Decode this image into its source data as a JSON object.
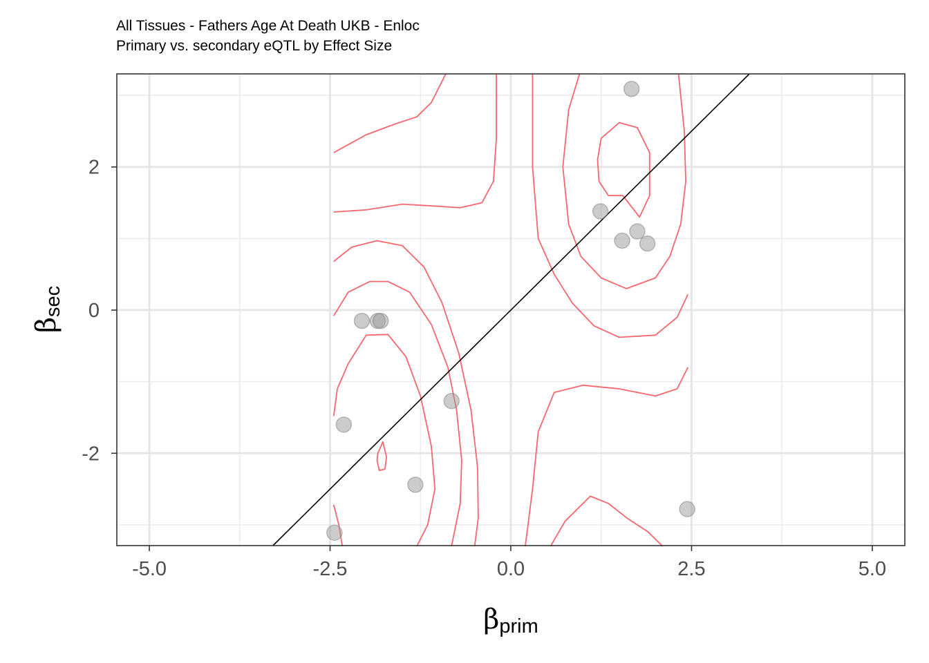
{
  "chart_data": {
    "type": "scatter",
    "title": "All Tissues - Fathers Age At Death UKB - Enloc",
    "subtitle": "Primary vs. secondary eQTL by Effect Size",
    "xlabel": {
      "symbol": "β",
      "subscript": "prim"
    },
    "ylabel": {
      "symbol": "β",
      "subscript": "sec"
    },
    "xlim": [
      -5.45,
      5.45
    ],
    "ylim": [
      -3.29,
      3.3
    ],
    "x_ticks": [
      -5.0,
      -2.5,
      0.0,
      2.5,
      5.0
    ],
    "x_tick_labels": [
      "-5.0",
      "-2.5",
      "0.0",
      "2.5",
      "5.0"
    ],
    "y_ticks": [
      -2,
      0,
      2
    ],
    "y_tick_labels": [
      "-2",
      "0",
      "2"
    ],
    "x_minor_ticks": [
      -3.75,
      -1.25,
      1.25,
      3.75
    ],
    "y_minor_ticks": [
      -3,
      -1,
      1,
      3
    ],
    "grid": true,
    "points": [
      {
        "x": 1.67,
        "y": 3.09
      },
      {
        "x": 1.24,
        "y": 1.38
      },
      {
        "x": 1.75,
        "y": 1.1
      },
      {
        "x": 1.54,
        "y": 0.97
      },
      {
        "x": 1.89,
        "y": 0.93
      },
      {
        "x": -2.06,
        "y": -0.15
      },
      {
        "x": -1.84,
        "y": -0.15
      },
      {
        "x": -1.8,
        "y": -0.15
      },
      {
        "x": -0.82,
        "y": -1.27
      },
      {
        "x": -2.31,
        "y": -1.6
      },
      {
        "x": -1.32,
        "y": -2.44
      },
      {
        "x": 2.44,
        "y": -2.78
      },
      {
        "x": -2.44,
        "y": -3.11
      }
    ],
    "reference_line": {
      "slope": 1,
      "intercept": 0,
      "color": "#000000"
    },
    "point_color": "#999999",
    "contour_color": "#f8666d",
    "contours": [
      [
        [
          1.25,
          2.4
        ],
        [
          1.5,
          2.62
        ],
        [
          1.75,
          2.55
        ],
        [
          1.92,
          2.2
        ],
        [
          1.92,
          1.6
        ],
        [
          1.78,
          1.3
        ],
        [
          1.55,
          1.6
        ],
        [
          1.35,
          1.6
        ],
        [
          1.22,
          1.8
        ],
        [
          1.2,
          2.1
        ],
        [
          1.25,
          2.4
        ]
      ],
      [
        [
          0.72,
          2.0
        ],
        [
          0.8,
          2.8
        ],
        [
          0.95,
          3.3
        ]
      ],
      [
        [
          2.32,
          3.3
        ],
        [
          2.4,
          2.5
        ],
        [
          2.42,
          1.8
        ],
        [
          2.35,
          1.2
        ],
        [
          2.2,
          0.75
        ],
        [
          2.0,
          0.45
        ],
        [
          1.6,
          0.3
        ],
        [
          1.25,
          0.45
        ],
        [
          0.97,
          0.75
        ],
        [
          0.8,
          1.2
        ],
        [
          0.72,
          2.0
        ]
      ],
      [
        [
          0.3,
          3.3
        ],
        [
          0.3,
          2.0
        ],
        [
          0.38,
          1.0
        ],
        [
          0.6,
          0.5
        ],
        [
          0.85,
          0.1
        ],
        [
          1.15,
          -0.22
        ],
        [
          1.5,
          -0.38
        ],
        [
          2.0,
          -0.35
        ],
        [
          2.3,
          -0.1
        ],
        [
          2.45,
          0.22
        ]
      ],
      [
        [
          -0.2,
          3.3
        ],
        [
          -0.2,
          2.4
        ],
        [
          -0.24,
          1.8
        ],
        [
          -0.4,
          1.5
        ],
        [
          -0.7,
          1.43
        ],
        [
          -1.0,
          1.45
        ],
        [
          -1.5,
          1.48
        ],
        [
          -2.0,
          1.4
        ],
        [
          -2.45,
          1.37
        ]
      ],
      [
        [
          -0.9,
          3.3
        ],
        [
          -1.1,
          2.9
        ],
        [
          -1.3,
          2.7
        ],
        [
          -1.6,
          2.6
        ],
        [
          -2.0,
          2.45
        ],
        [
          -2.45,
          2.2
        ]
      ],
      [
        [
          -2.45,
          0.68
        ],
        [
          -2.2,
          0.88
        ],
        [
          -1.85,
          0.97
        ],
        [
          -1.5,
          0.9
        ],
        [
          -1.2,
          0.6
        ],
        [
          -0.95,
          0.1
        ],
        [
          -0.72,
          -0.6
        ],
        [
          -0.55,
          -1.4
        ],
        [
          -0.46,
          -2.2
        ],
        [
          -0.45,
          -2.9
        ],
        [
          -0.5,
          -3.3
        ]
      ],
      [
        [
          -2.45,
          -0.08
        ],
        [
          -2.25,
          0.25
        ],
        [
          -1.95,
          0.4
        ],
        [
          -1.7,
          0.4
        ],
        [
          -1.4,
          0.25
        ],
        [
          -1.1,
          -0.2
        ],
        [
          -0.87,
          -0.8
        ],
        [
          -0.75,
          -1.4
        ],
        [
          -0.68,
          -2.1
        ],
        [
          -0.7,
          -2.7
        ],
        [
          -0.82,
          -3.3
        ]
      ],
      [
        [
          -2.45,
          -1.48
        ],
        [
          -2.4,
          -1.1
        ],
        [
          -2.25,
          -0.75
        ],
        [
          -2.0,
          -0.35
        ],
        [
          -1.7,
          -0.34
        ],
        [
          -1.45,
          -0.65
        ],
        [
          -1.25,
          -1.2
        ],
        [
          -1.1,
          -1.9
        ],
        [
          -1.05,
          -2.5
        ],
        [
          -1.15,
          -3.0
        ],
        [
          -1.3,
          -3.3
        ]
      ],
      [
        [
          -1.84,
          -2.0
        ],
        [
          -1.77,
          -1.84
        ],
        [
          -1.72,
          -2.05
        ],
        [
          -1.74,
          -2.22
        ],
        [
          -1.82,
          -2.24
        ],
        [
          -1.85,
          -2.1
        ],
        [
          -1.84,
          -2.0
        ]
      ],
      [
        [
          -2.45,
          -2.72
        ],
        [
          -2.38,
          -3.0
        ],
        [
          -2.33,
          -3.3
        ]
      ],
      [
        [
          0.2,
          -3.3
        ],
        [
          0.3,
          -2.5
        ],
        [
          0.38,
          -1.7
        ],
        [
          0.6,
          -1.15
        ],
        [
          1.0,
          -1.05
        ],
        [
          1.5,
          -1.1
        ],
        [
          2.0,
          -1.2
        ],
        [
          2.3,
          -1.1
        ],
        [
          2.45,
          -0.8
        ]
      ],
      [
        [
          0.55,
          -3.3
        ],
        [
          0.75,
          -2.95
        ],
        [
          1.1,
          -2.6
        ],
        [
          1.35,
          -2.7
        ],
        [
          1.6,
          -2.9
        ],
        [
          1.9,
          -3.1
        ],
        [
          2.1,
          -3.3
        ]
      ]
    ]
  }
}
